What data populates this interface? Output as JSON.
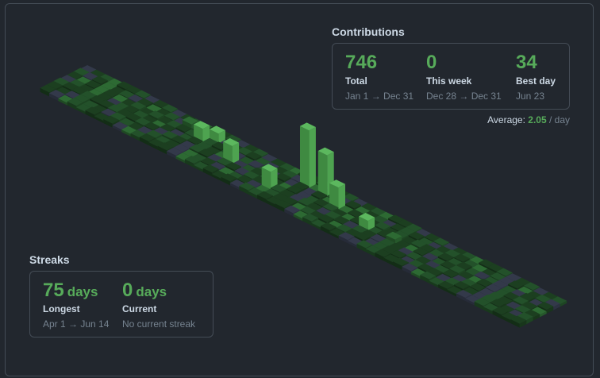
{
  "contributions": {
    "title": "Contributions",
    "stats": [
      {
        "value": 746,
        "label": "Total",
        "range": "Jan 1 → Dec 31"
      },
      {
        "value": 0,
        "label": "This week",
        "range": "Dec 28 → Dec 31"
      },
      {
        "value": 34,
        "label": "Best day",
        "range": "Jun 23"
      }
    ],
    "average": {
      "label": "Average:",
      "value": 2.05,
      "unit": "/ day"
    }
  },
  "streaks": {
    "title": "Streaks",
    "items": [
      {
        "value": 75,
        "unit": "days",
        "label": "Longest",
        "range": "Apr 1 → Jun 14"
      },
      {
        "value": 0,
        "unit": "days",
        "label": "Current",
        "range": "No current streak"
      }
    ]
  }
}
